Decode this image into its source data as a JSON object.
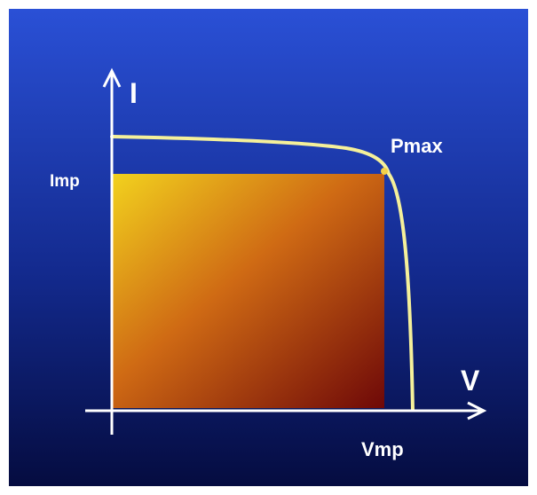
{
  "diagram": {
    "labels": {
      "y_axis": "I",
      "x_axis": "V",
      "current_max_power": "Imp",
      "voltage_max_power": "Vmp",
      "max_power_point": "Pmax"
    },
    "colors": {
      "background_top": "#2a50d6",
      "background_bottom": "#050c40",
      "curve": "#f5f09a",
      "axis": "#ffffff",
      "area_top": "#f2d21e",
      "area_bottom": "#6e0808",
      "point": "#f3d24a"
    }
  }
}
